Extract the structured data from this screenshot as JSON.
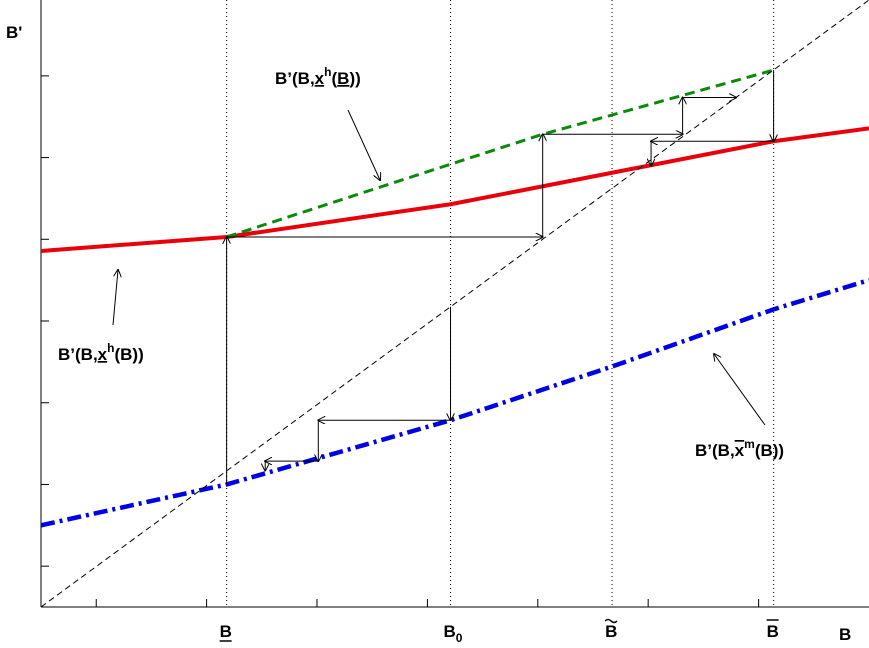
{
  "chart_data": {
    "type": "line",
    "title": "",
    "xlabel": "B",
    "ylabel": "B'",
    "xlim": [
      0,
      1
    ],
    "ylim": [
      0,
      1
    ],
    "grid": false,
    "x_ticks": [
      0.0667,
      0.2,
      0.3333,
      0.4667,
      0.6,
      0.7333,
      0.8667
    ],
    "y_ticks": [
      0.0673,
      0.2019,
      0.3365,
      0.4712,
      0.6058,
      0.7404,
      0.875
    ],
    "marked_points": [
      {
        "label": "B",
        "accent": "underline",
        "x": 0.2242
      },
      {
        "label": "B",
        "sub": "0",
        "x": 0.4946
      },
      {
        "label": "B",
        "accent": "tilde",
        "x": 0.6897
      },
      {
        "label": "B",
        "accent": "overline",
        "x": 0.8848
      }
    ],
    "series": [
      {
        "name": "x^h underline (red)",
        "color": "#e8000b",
        "style": "solid",
        "x": [
          0,
          0.2242,
          0.4946,
          0.6897,
          0.8848,
          1.0
        ],
        "y": [
          0.5865,
          0.6096,
          0.6635,
          0.7154,
          0.7673,
          0.7885
        ]
      },
      {
        "name": "x^h underline, upper branch (green)",
        "color": "#0a8a0a",
        "style": "dashed",
        "x": [
          0.2242,
          0.6059,
          0.8848
        ],
        "y": [
          0.6096,
          0.7788,
          0.8846
        ]
      },
      {
        "name": "x^m overline (blue)",
        "color": "#0000e6",
        "style": "dashdot",
        "x": [
          0,
          0.2242,
          0.4946,
          0.6897,
          0.8848,
          1.0
        ],
        "y": [
          0.1346,
          0.2019,
          0.3077,
          0.3962,
          0.4904,
          0.5385
        ]
      },
      {
        "name": "45-degree line",
        "color": "#000000",
        "style": "dashed",
        "x": [
          0,
          1
        ],
        "y": [
          0,
          1
        ]
      }
    ],
    "annotations": [
      {
        "id": "green",
        "parts": [
          "B’(B,",
          "x",
          "h",
          "(",
          "B",
          "))"
        ]
      },
      {
        "id": "red",
        "parts": [
          "B’(B,",
          "x",
          "h",
          "(B))"
        ]
      },
      {
        "id": "blue",
        "parts": [
          "B’(B,",
          "x",
          "m",
          "(B))"
        ]
      }
    ],
    "cobweb_paths": [
      {
        "name": "upper cobweb from B underline",
        "points": [
          [
            0.2242,
            0.2019
          ],
          [
            0.2242,
            0.6096
          ],
          [
            0.6059,
            0.6096
          ],
          [
            0.6059,
            0.7788
          ],
          [
            0.7749,
            0.7788
          ],
          [
            0.7749,
            0.8393
          ],
          [
            0.8394,
            0.8393
          ]
        ]
      },
      {
        "name": "upper cobweb from B overline",
        "points": [
          [
            0.8848,
            0.8846
          ],
          [
            0.8848,
            0.7673
          ],
          [
            0.7368,
            0.7673
          ],
          [
            0.7368,
            0.7273
          ]
        ]
      },
      {
        "name": "lower cobweb from B0",
        "points": [
          [
            0.4946,
            0.4946
          ],
          [
            0.4946,
            0.3077
          ],
          [
            0.3349,
            0.3077
          ],
          [
            0.3349,
            0.2404
          ],
          [
            0.2708,
            0.2404
          ],
          [
            0.2708,
            0.225
          ]
        ]
      }
    ]
  }
}
